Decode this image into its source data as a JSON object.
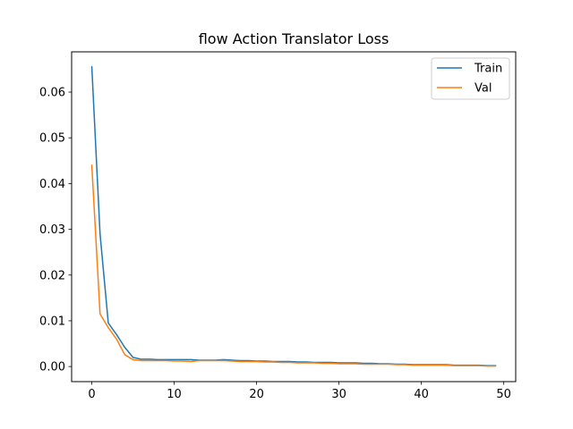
{
  "chart_data": {
    "type": "line",
    "title": "flow Action Translator Loss",
    "xlabel": "",
    "ylabel": "",
    "xlim": [
      -2.45,
      51.45
    ],
    "ylim": [
      -0.0033,
      0.0688
    ],
    "grid": false,
    "legend_position": "top-right",
    "xticks": [
      0,
      10,
      20,
      30,
      40,
      50
    ],
    "xtick_labels": [
      "0",
      "10",
      "20",
      "30",
      "40",
      "50"
    ],
    "yticks": [
      0.0,
      0.01,
      0.02,
      0.03,
      0.04,
      0.05,
      0.06
    ],
    "ytick_labels": [
      "0.00",
      "0.01",
      "0.02",
      "0.03",
      "0.04",
      "0.05",
      "0.06"
    ],
    "x": [
      0,
      1,
      2,
      3,
      4,
      5,
      6,
      7,
      8,
      9,
      10,
      11,
      12,
      13,
      14,
      15,
      16,
      17,
      18,
      19,
      20,
      21,
      22,
      23,
      24,
      25,
      26,
      27,
      28,
      29,
      30,
      31,
      32,
      33,
      34,
      35,
      36,
      37,
      38,
      39,
      40,
      41,
      42,
      43,
      44,
      45,
      46,
      47,
      48,
      49
    ],
    "series": [
      {
        "name": "Train",
        "color": "#1f77b4",
        "values": [
          0.0655,
          0.029,
          0.0095,
          0.007,
          0.0042,
          0.002,
          0.0016,
          0.0016,
          0.0015,
          0.0015,
          0.0015,
          0.0015,
          0.0015,
          0.0014,
          0.0014,
          0.0014,
          0.0015,
          0.0014,
          0.0013,
          0.0013,
          0.0012,
          0.0012,
          0.0011,
          0.0011,
          0.0011,
          0.001,
          0.001,
          0.0009,
          0.0009,
          0.0009,
          0.0008,
          0.0008,
          0.0008,
          0.0007,
          0.0007,
          0.0006,
          0.0006,
          0.0005,
          0.0005,
          0.0004,
          0.0004,
          0.0004,
          0.0004,
          0.0004,
          0.0003,
          0.0003,
          0.0003,
          0.0003,
          0.0002,
          0.0002
        ]
      },
      {
        "name": "Val",
        "color": "#ff7f0e",
        "values": [
          0.044,
          0.0115,
          0.0085,
          0.006,
          0.0026,
          0.0015,
          0.0013,
          0.0013,
          0.0013,
          0.0013,
          0.0012,
          0.0012,
          0.0011,
          0.0013,
          0.0013,
          0.0013,
          0.0013,
          0.0012,
          0.0011,
          0.0011,
          0.0011,
          0.001,
          0.001,
          0.0009,
          0.0009,
          0.0008,
          0.0008,
          0.0008,
          0.0007,
          0.0007,
          0.0006,
          0.0006,
          0.0006,
          0.0005,
          0.0005,
          0.0005,
          0.0005,
          0.0004,
          0.0004,
          0.0003,
          0.0003,
          0.0003,
          0.0003,
          0.0003,
          0.0002,
          0.0002,
          0.0002,
          0.0002,
          0.0001,
          0.0001
        ]
      }
    ]
  }
}
